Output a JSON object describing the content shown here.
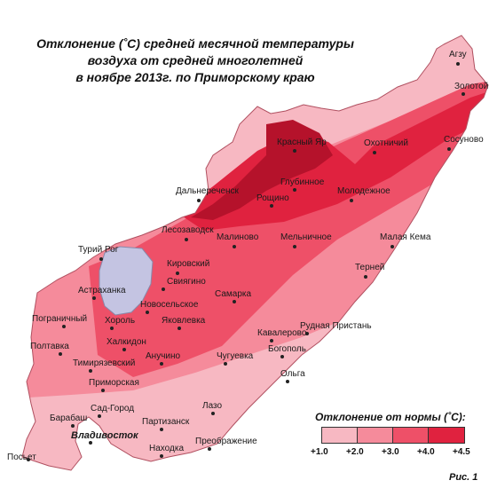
{
  "title": {
    "line1": "Отклонение (˚C) средней  месячной температуры",
    "line2": "воздуха  от средней многолетней",
    "line3": "в ноябре 2013г. по Приморскому краю"
  },
  "legend": {
    "title": "Отклонение от нормы (˚C):",
    "ticks": [
      "+1.0",
      "+2.0",
      "+3.0",
      "+4.0",
      "+4.5"
    ],
    "colors": [
      "#f7b8c2",
      "#f58b9b",
      "#ee5068",
      "#e0223f",
      "#b5122b"
    ]
  },
  "figure_label": "Рис. 1",
  "stations": [
    {
      "name": "Агзу"
    },
    {
      "name": "Золотой"
    },
    {
      "name": "Сосуново"
    },
    {
      "name": "Красный Яр"
    },
    {
      "name": "Охотничий"
    },
    {
      "name": "Глубинное"
    },
    {
      "name": "Дальнереченск"
    },
    {
      "name": "Рощино"
    },
    {
      "name": "Молодежное"
    },
    {
      "name": "Лесозаводск"
    },
    {
      "name": "Малиново"
    },
    {
      "name": "Мельничное"
    },
    {
      "name": "Малая Кема"
    },
    {
      "name": "Турий Рог"
    },
    {
      "name": "Кировский"
    },
    {
      "name": "Терней"
    },
    {
      "name": "Свиягино"
    },
    {
      "name": "Астраханка"
    },
    {
      "name": "Новосельское"
    },
    {
      "name": "Самарка"
    },
    {
      "name": "Пограничный"
    },
    {
      "name": "Хороль"
    },
    {
      "name": "Яковлевка"
    },
    {
      "name": "Рудная Пристань"
    },
    {
      "name": "Халкидон"
    },
    {
      "name": "Кавалерово"
    },
    {
      "name": "Полтавка"
    },
    {
      "name": "Богополь"
    },
    {
      "name": "Тимирязевский"
    },
    {
      "name": "Анучино"
    },
    {
      "name": "Чугуевка"
    },
    {
      "name": "Ольга"
    },
    {
      "name": "Приморская"
    },
    {
      "name": "Лазо"
    },
    {
      "name": "Сад-Город"
    },
    {
      "name": "Барабаш"
    },
    {
      "name": "Партизанск"
    },
    {
      "name": "Владивосток"
    },
    {
      "name": "Преображение"
    },
    {
      "name": "Находка"
    },
    {
      "name": "Посьет"
    }
  ]
}
